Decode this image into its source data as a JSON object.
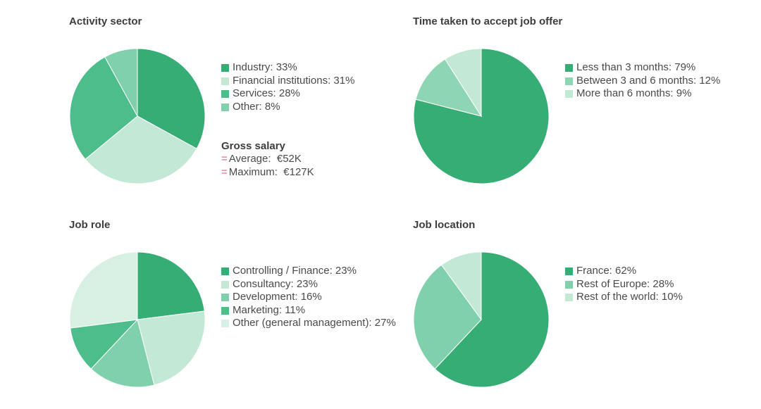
{
  "chart_data": [
    {
      "type": "pie",
      "title": "Activity sector",
      "slices": [
        {
          "label": "Industry: 33%",
          "value": 33,
          "color": "#36ad74"
        },
        {
          "label": "Financial institutions: 31%",
          "value": 31,
          "color": "#c3e9d6"
        },
        {
          "label": "Services: 28%",
          "value": 28,
          "color": "#4cbd8b"
        },
        {
          "label": "Other: 8%",
          "value": 8,
          "color": "#7fd0ab"
        }
      ]
    },
    {
      "type": "pie",
      "title": "Time taken to accept job offer",
      "slices": [
        {
          "label": "Less than 3 months: 79%",
          "value": 79,
          "color": "#36ad74"
        },
        {
          "label": "Between 3 and 6 months: 12%",
          "value": 12,
          "color": "#8ed6b3"
        },
        {
          "label": "More than 6 months: 9%",
          "value": 9,
          "color": "#c3e9d6"
        }
      ]
    },
    {
      "type": "pie",
      "title": "Job role",
      "slices": [
        {
          "label": "Controlling / Finance: 23%",
          "value": 23,
          "color": "#36ad74"
        },
        {
          "label": "Consultancy: 23%",
          "value": 23,
          "color": "#c3e9d6"
        },
        {
          "label": "Development: 16%",
          "value": 16,
          "color": "#7fd0ab"
        },
        {
          "label": "Marketing: 11%",
          "value": 11,
          "color": "#4cbd8b"
        },
        {
          "label": "Other (general management): 27%",
          "value": 27,
          "color": "#d7f0e3"
        }
      ]
    },
    {
      "type": "pie",
      "title": "Job location",
      "slices": [
        {
          "label": "France: 62%",
          "value": 62,
          "color": "#36ad74"
        },
        {
          "label": "Rest of Europe: 28%",
          "value": 28,
          "color": "#7fd0ab"
        },
        {
          "label": "Rest of the world: 10%",
          "value": 10,
          "color": "#c3e9d6"
        }
      ]
    }
  ],
  "salary": {
    "title": "Gross salary",
    "symbol": "=",
    "lines": [
      "Average:  €52K",
      "Maximum:  €127K"
    ]
  }
}
